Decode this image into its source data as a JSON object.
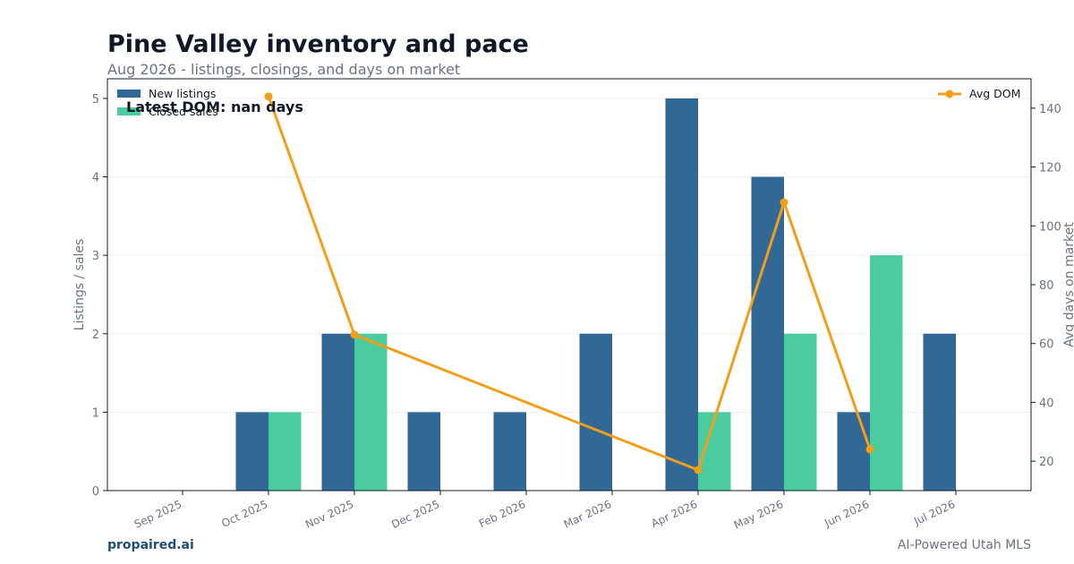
{
  "title": "Pine Valley inventory and pace",
  "subtitle": "Aug 2026 - listings, closings, and days on market",
  "footer": {
    "brand": "propaired.ai",
    "tagline": "AI-Powered Utah MLS"
  },
  "annotation": "Latest DOM: nan days",
  "colors": {
    "listings": "#326896",
    "closed": "#4bcc9f",
    "dom": "#f29e16",
    "axis": "#111827",
    "tick_text": "#6b7280"
  },
  "chart_data": {
    "type": "bar",
    "categories": [
      "Sep 2025",
      "Oct 2025",
      "Nov 2025",
      "Dec 2025",
      "Feb 2026",
      "Mar 2026",
      "Apr 2026",
      "May 2026",
      "Jun 2026",
      "Jul 2026"
    ],
    "series": [
      {
        "name": "New listings",
        "type": "bar",
        "axis": "left",
        "values": [
          0,
          1,
          2,
          1,
          1,
          2,
          5,
          4,
          1,
          2
        ]
      },
      {
        "name": "Closed sales",
        "type": "bar",
        "axis": "left",
        "values": [
          0,
          1,
          2,
          0,
          0,
          0,
          1,
          2,
          3,
          0
        ]
      },
      {
        "name": "Avg DOM",
        "type": "line",
        "axis": "right",
        "values": [
          null,
          144,
          63,
          null,
          null,
          null,
          17,
          108,
          24,
          null
        ]
      }
    ],
    "ylabel": "Listings / sales",
    "y2label": "Avg days on market",
    "ylim": [
      0,
      5.25
    ],
    "y2lim": [
      10,
      150
    ],
    "yticks": [
      0,
      1,
      2,
      3,
      4,
      5
    ],
    "y2ticks": [
      20,
      40,
      60,
      80,
      100,
      120,
      140
    ],
    "grid": true,
    "legend_left": "top-left",
    "legend_right": "top-right"
  }
}
